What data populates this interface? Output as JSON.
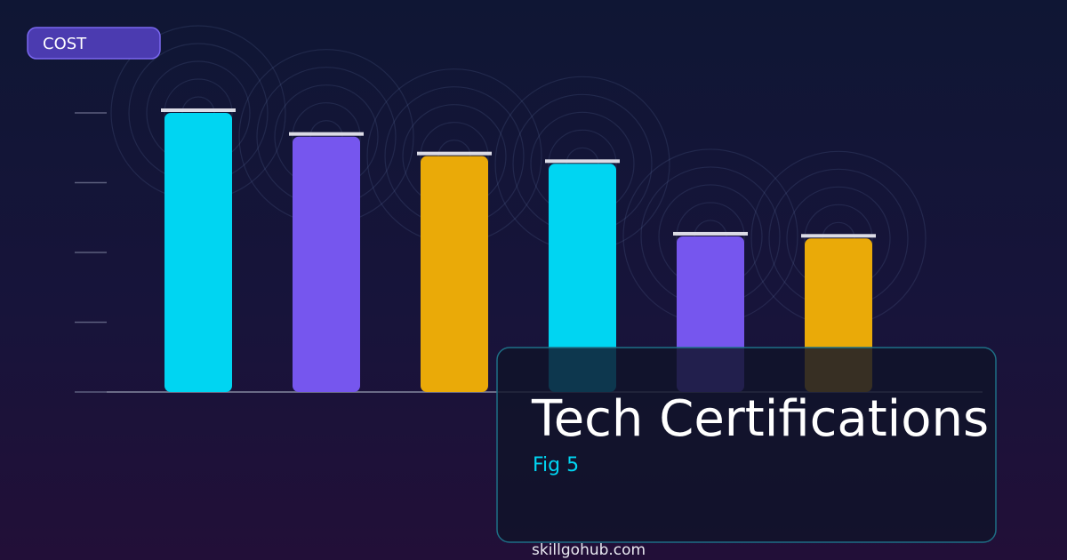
{
  "chart_data": {
    "type": "bar",
    "y_label": "COST",
    "title": "Tech Certifications",
    "subtitle": "Fig 5",
    "source": "skillgohub.com",
    "categories": [
      null,
      null,
      null,
      null,
      null,
      null
    ],
    "values": [
      4.0,
      3.66,
      3.38,
      3.27,
      2.23,
      2.2
    ],
    "colors": [
      "#00d5f2",
      "#7656ee",
      "#eaaa08",
      "#00d5f2",
      "#7656ee",
      "#eaaa08"
    ],
    "ylim": [
      0,
      4
    ],
    "yticks": [
      0,
      1,
      2,
      3,
      4
    ]
  }
}
